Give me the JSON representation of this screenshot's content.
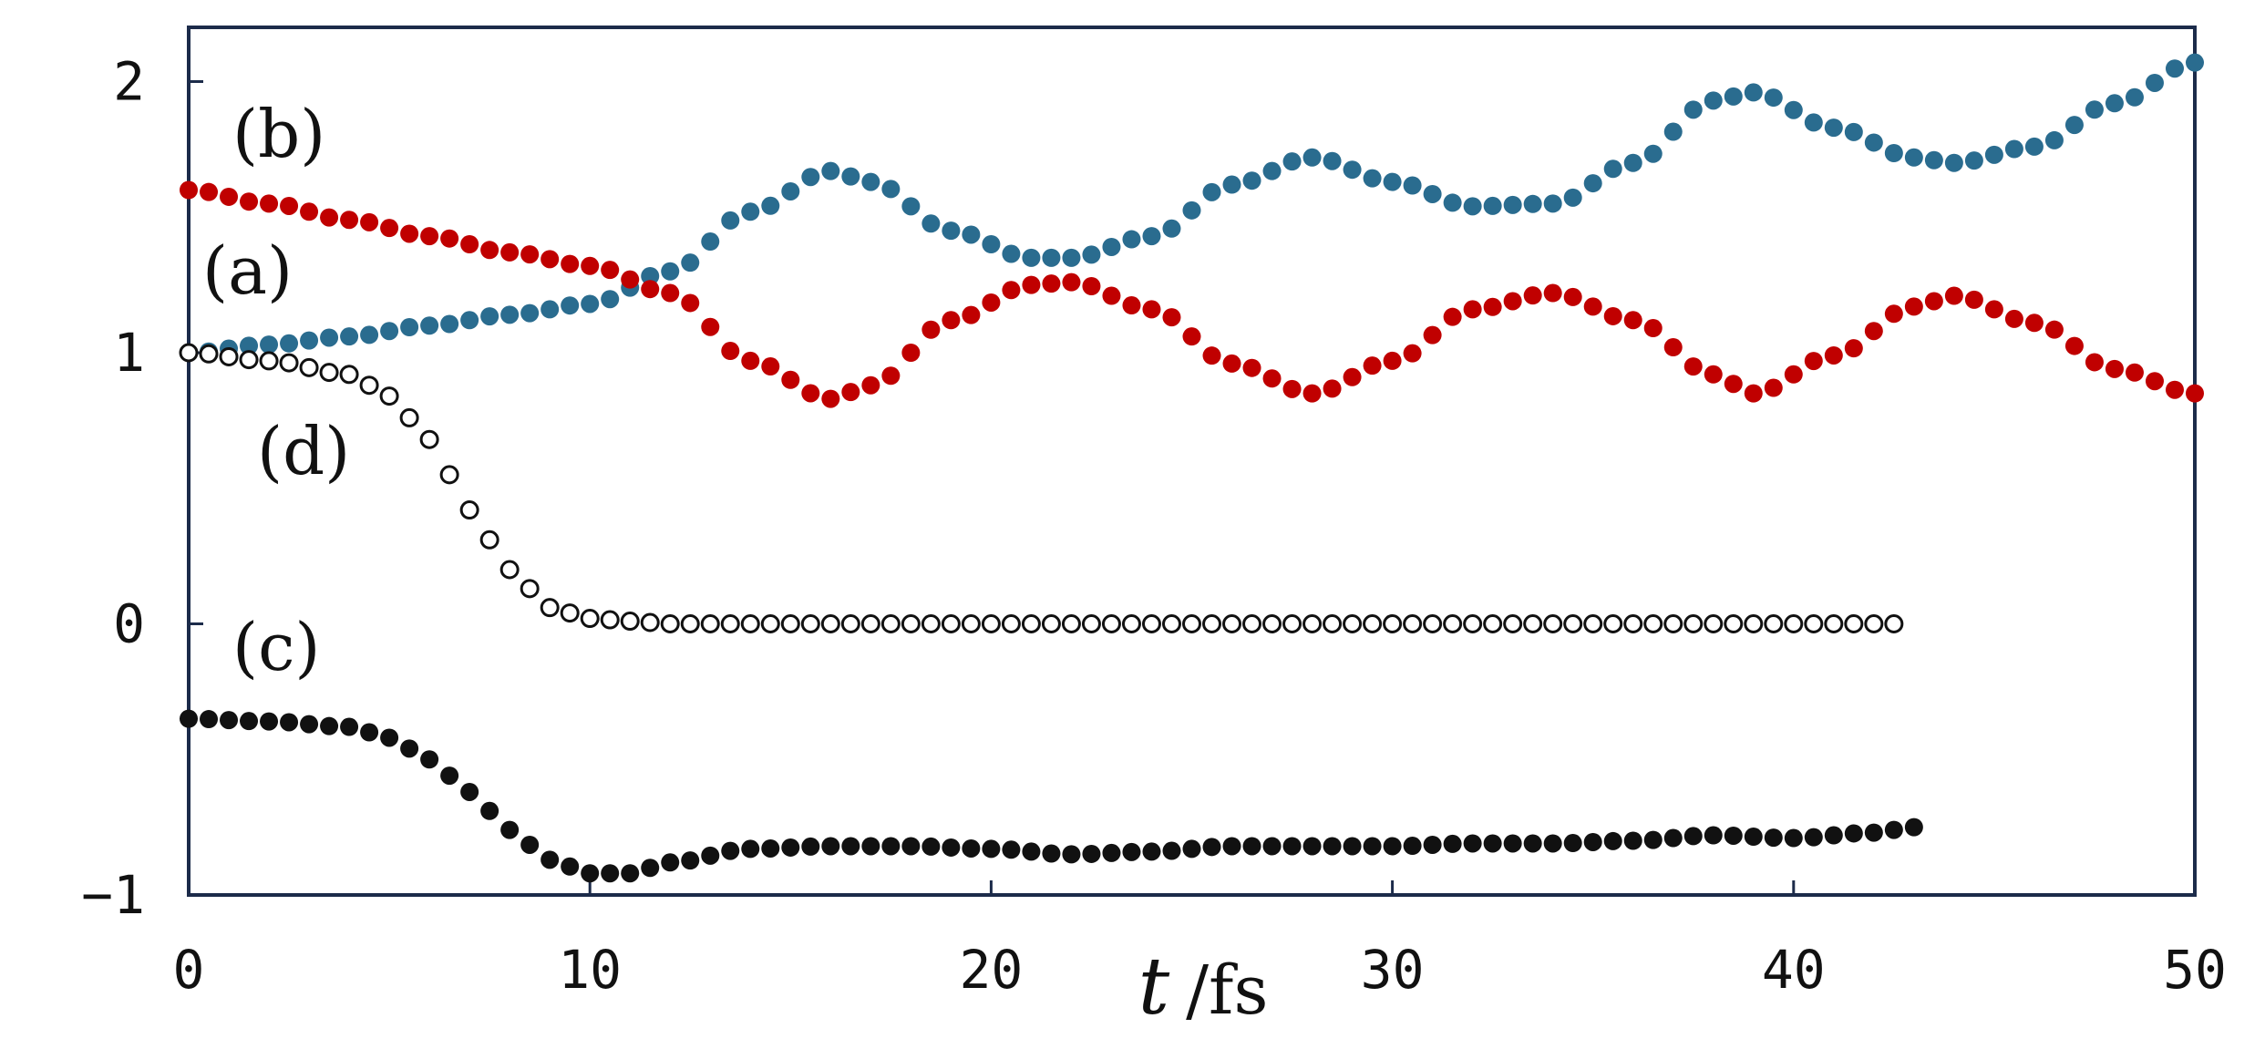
{
  "chart_data": {
    "type": "scatter",
    "title": "",
    "xlabel_symbol": "t",
    "xlabel_unit": "/fs",
    "ylabel": "",
    "xlim": [
      0,
      50
    ],
    "ylim": [
      -1,
      2.2
    ],
    "x_ticks": [
      0,
      10,
      20,
      30,
      40,
      50
    ],
    "x_tick_labels": [
      "0",
      "10",
      "20",
      "30",
      "40",
      "50"
    ],
    "y_ticks": [
      -1,
      0,
      1,
      2
    ],
    "y_tick_labels": [
      "−1",
      "0",
      "1",
      "2"
    ],
    "grid": false,
    "colors": {
      "a": "#2a6c8f",
      "b": "#c00000",
      "c": "#111111",
      "d": "#111111"
    },
    "series": [
      {
        "name": "(a)",
        "marker": "filled",
        "x": [
          0,
          2,
          4,
          6,
          8,
          10,
          12,
          14,
          16,
          17,
          19,
          21,
          22,
          24,
          26,
          28,
          30,
          32,
          34,
          36,
          38,
          39,
          41,
          43,
          44,
          46,
          48,
          50
        ],
        "y": [
          1.0,
          1.03,
          1.06,
          1.1,
          1.14,
          1.18,
          1.3,
          1.52,
          1.67,
          1.63,
          1.45,
          1.35,
          1.35,
          1.43,
          1.62,
          1.72,
          1.63,
          1.54,
          1.55,
          1.7,
          1.93,
          1.96,
          1.83,
          1.72,
          1.7,
          1.76,
          1.92,
          2.07
        ]
      },
      {
        "name": "(b)",
        "marker": "filled",
        "x": [
          0,
          2,
          4,
          6,
          8,
          10,
          12,
          14,
          16,
          17,
          19,
          21,
          22,
          24,
          26,
          28,
          30,
          32,
          34,
          36,
          38,
          39,
          41,
          43,
          44,
          46,
          48,
          50
        ],
        "y": [
          1.6,
          1.55,
          1.49,
          1.43,
          1.37,
          1.32,
          1.22,
          0.97,
          0.83,
          0.88,
          1.12,
          1.25,
          1.26,
          1.16,
          0.96,
          0.85,
          0.97,
          1.16,
          1.22,
          1.12,
          0.92,
          0.85,
          0.99,
          1.17,
          1.21,
          1.11,
          0.94,
          0.85
        ]
      },
      {
        "name": "(c)",
        "marker": "filled",
        "x": [
          0,
          2,
          4,
          5,
          6,
          7,
          8,
          9,
          10,
          11,
          12,
          14,
          16,
          18,
          20,
          22,
          24,
          26,
          28,
          30,
          32,
          34,
          36,
          38,
          40,
          42,
          43
        ],
        "y": [
          -0.35,
          -0.36,
          -0.38,
          -0.42,
          -0.5,
          -0.62,
          -0.76,
          -0.87,
          -0.92,
          -0.92,
          -0.88,
          -0.83,
          -0.82,
          -0.82,
          -0.83,
          -0.85,
          -0.84,
          -0.82,
          -0.82,
          -0.82,
          -0.81,
          -0.81,
          -0.8,
          -0.78,
          -0.79,
          -0.77,
          -0.75
        ]
      },
      {
        "name": "(d)",
        "marker": "open",
        "x": [
          0,
          2,
          4,
          5,
          6,
          7,
          8,
          9,
          10,
          11,
          12,
          14,
          16,
          20,
          25,
          30,
          35,
          40,
          42.5
        ],
        "y": [
          1.0,
          0.97,
          0.92,
          0.84,
          0.68,
          0.42,
          0.2,
          0.06,
          0.02,
          0.01,
          0.0,
          0.0,
          0.0,
          0.0,
          0.0,
          0.0,
          0.0,
          0.0,
          0.0
        ]
      }
    ]
  }
}
